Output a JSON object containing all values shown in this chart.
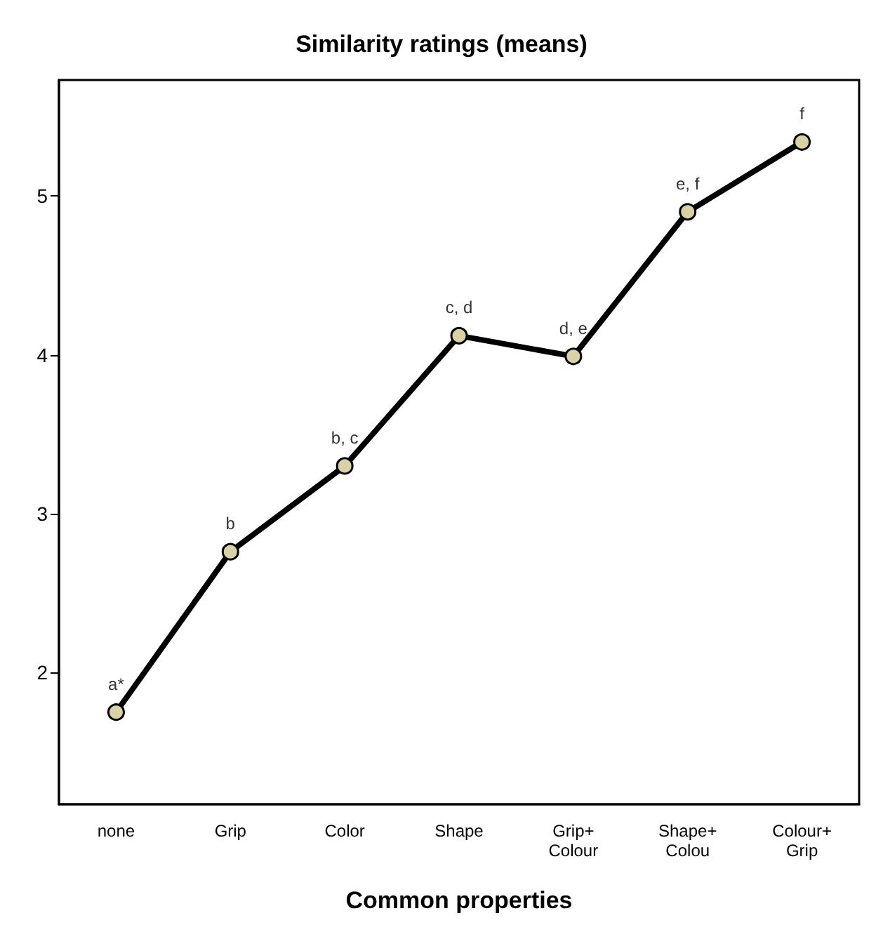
{
  "chart_data": {
    "type": "line",
    "title": "Similarity ratings (means)",
    "xlabel": "Common properties",
    "categories": [
      "none",
      "Grip",
      "Color",
      "Shape",
      "Grip+\nColour",
      "Shape+\nColou",
      "Colour+\nGrip"
    ],
    "series": [
      {
        "color": "#000000",
        "values": [
          1.75,
          2.76,
          3.3,
          4.12,
          3.99,
          4.9,
          5.34
        ]
      }
    ],
    "ylim": [
      1.17,
      5.73
    ],
    "yticks": [
      2,
      3,
      4,
      5
    ],
    "grid": false,
    "marker": "circle",
    "line_style": "solid",
    "annotations": [
      {
        "text": "a*",
        "x": "none",
        "y": 1.75
      },
      {
        "text": "b",
        "x": "Grip",
        "y": 2.76
      },
      {
        "text": "b, c",
        "x": "Color",
        "y": 3.3
      },
      {
        "text": "c, d",
        "x": "Shape",
        "y": 4.12
      },
      {
        "text": "d, e",
        "x": "Grip+\nColour",
        "y": 3.99
      },
      {
        "text": "e, f",
        "x": "Shape+\nColou",
        "y": 4.9
      },
      {
        "text": "f",
        "x": "Colour+\nGrip",
        "y": 5.34
      }
    ]
  }
}
